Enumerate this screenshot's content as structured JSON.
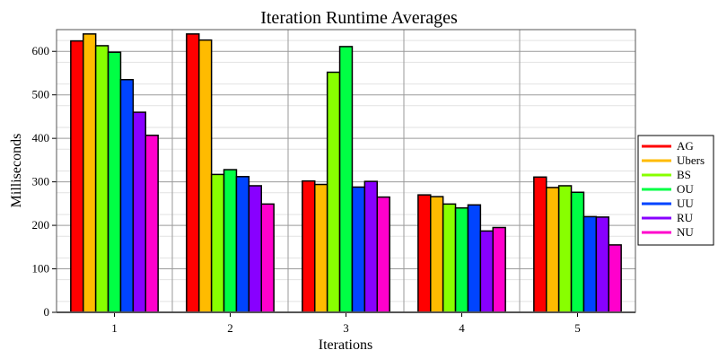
{
  "chart_data": {
    "type": "bar",
    "title": "Iteration Runtime Averages",
    "xlabel": "Iterations",
    "ylabel": "Milliseconds",
    "ylim": [
      0,
      650
    ],
    "yticks": [
      0,
      100,
      200,
      300,
      400,
      500,
      600
    ],
    "grid": true,
    "legend_position": "right",
    "categories": [
      "1",
      "2",
      "3",
      "4",
      "5"
    ],
    "series": [
      {
        "name": "AG",
        "color": "#ff0000",
        "values": [
          624,
          640,
          302,
          270,
          311
        ]
      },
      {
        "name": "Ubers",
        "color": "#ffbb00",
        "values": [
          640,
          626,
          294,
          266,
          287
        ]
      },
      {
        "name": "BS",
        "color": "#88ff00",
        "values": [
          613,
          317,
          552,
          249,
          291
        ]
      },
      {
        "name": "OU",
        "color": "#00ff44",
        "values": [
          598,
          328,
          611,
          240,
          276
        ]
      },
      {
        "name": "UU",
        "color": "#0044ff",
        "values": [
          535,
          312,
          288,
          247,
          220
        ]
      },
      {
        "name": "RU",
        "color": "#8800ff",
        "values": [
          460,
          291,
          301,
          187,
          219
        ]
      },
      {
        "name": "NU",
        "color": "#ff00cc",
        "values": [
          407,
          249,
          265,
          195,
          155
        ]
      }
    ]
  }
}
